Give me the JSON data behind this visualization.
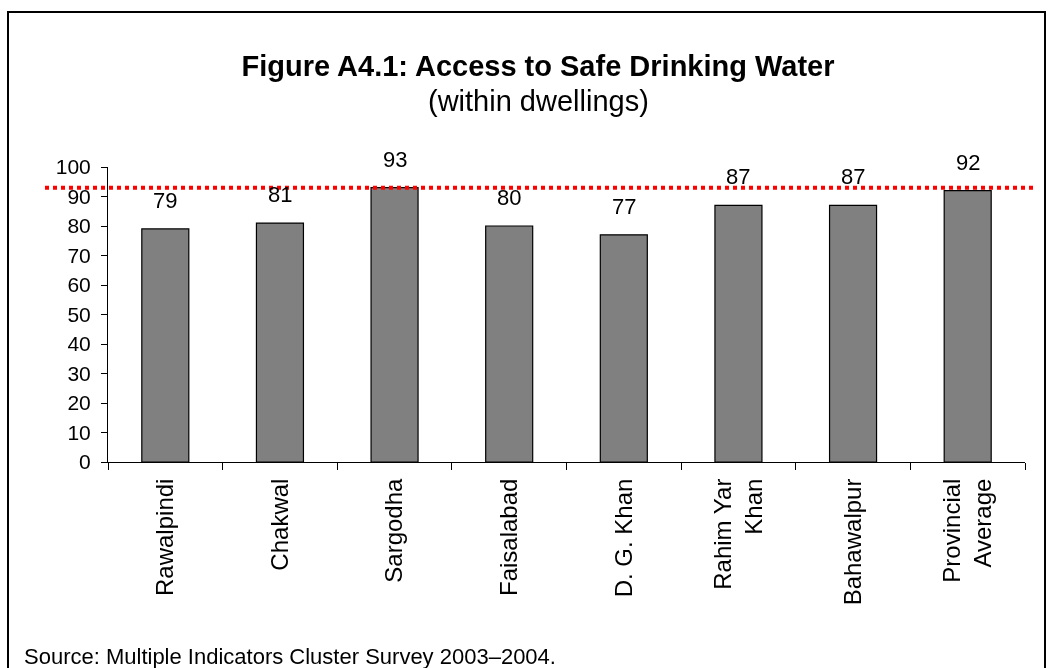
{
  "chart_data": {
    "type": "bar",
    "title": "Figure A4.1: Access to Safe Drinking Water",
    "subtitle": "(within dwellings)",
    "categories": [
      "Rawalpindi",
      "Chakwal",
      "Sargodha",
      "Faisalabad",
      "D. G. Khan",
      "Rahim Yar Khan",
      "Bahawalpur",
      "Provincial Average"
    ],
    "values": [
      79,
      81,
      93,
      80,
      77,
      87,
      87,
      92
    ],
    "color": "#808080",
    "ylim": [
      0,
      100
    ],
    "yticks": [
      0,
      10,
      20,
      30,
      40,
      50,
      60,
      70,
      80,
      90,
      100
    ],
    "data_labels": true,
    "ref_lines": [
      {
        "axis": "y",
        "value": 93,
        "color": "#ff0000",
        "line_style": "dotted"
      }
    ],
    "annotations": [
      "Source: Multiple Indicators Cluster Survey 2003–2004."
    ]
  }
}
